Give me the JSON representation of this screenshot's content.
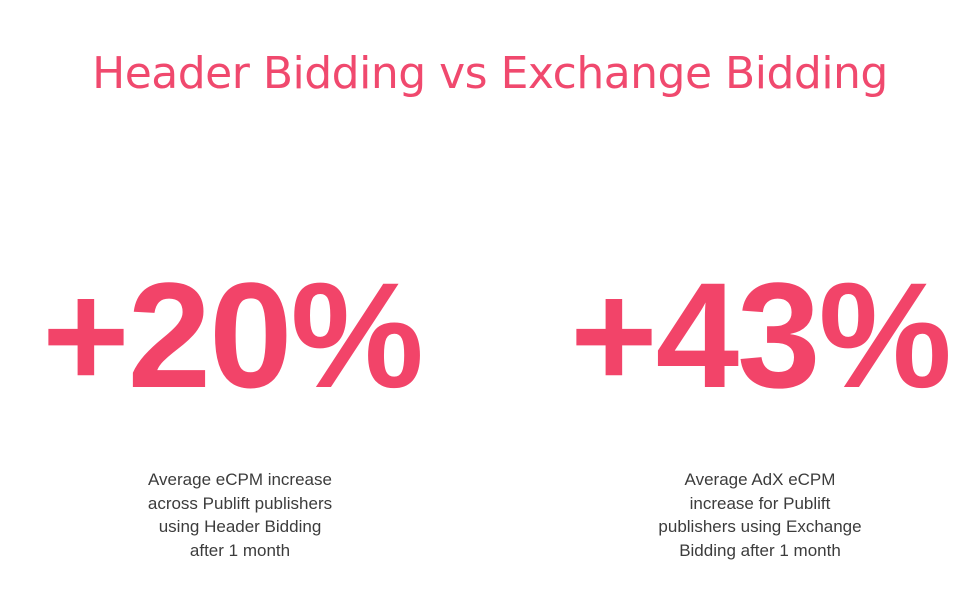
{
  "title": "Header Bidding vs Exchange Bidding",
  "stats": [
    {
      "value": "+20%",
      "caption": [
        "Average eCPM increase",
        "across Publift publishers",
        "using Header Bidding",
        "after 1 month"
      ]
    },
    {
      "value": "+43%",
      "caption": [
        "Average AdX eCPM",
        "increase for Publift",
        "publishers using Exchange",
        "Bidding after 1 month"
      ]
    }
  ]
}
